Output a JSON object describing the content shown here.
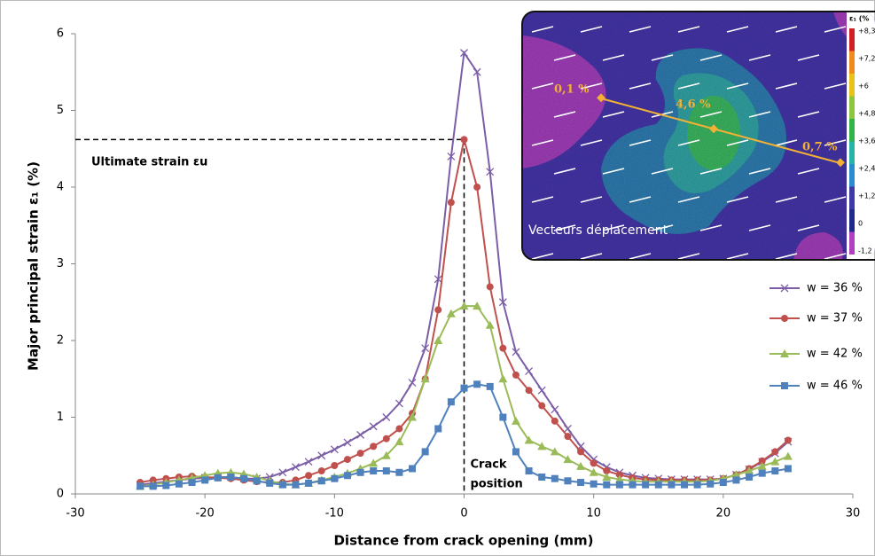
{
  "chart_data": {
    "type": "line",
    "x_label": "Distance from crack opening (mm)",
    "y_label": "Major principal strain ε₁ (%)",
    "xlim": [
      -30,
      30
    ],
    "xticks": [
      -30,
      -20,
      -10,
      0,
      10,
      20,
      30
    ],
    "ylim": [
      0,
      6
    ],
    "yticks": [
      0,
      1,
      2,
      3,
      4,
      5,
      6
    ],
    "grid": false,
    "legend_position": "right",
    "x": [
      -25,
      -24,
      -23,
      -22,
      -21,
      -20,
      -19,
      -18,
      -17,
      -16,
      -15,
      -14,
      -13,
      -12,
      -11,
      -10,
      -9,
      -8,
      -7,
      -6,
      -5,
      -4,
      -3,
      -2,
      -1,
      0,
      1,
      2,
      3,
      4,
      5,
      6,
      7,
      8,
      9,
      10,
      11,
      12,
      13,
      14,
      15,
      16,
      17,
      18,
      19,
      20,
      21,
      22,
      23,
      24,
      25
    ],
    "series": [
      {
        "name": "w = 36 %",
        "color": "#7b5ea7",
        "marker": "x",
        "values": [
          0.12,
          0.14,
          0.16,
          0.18,
          0.2,
          0.21,
          0.22,
          0.22,
          0.2,
          0.2,
          0.22,
          0.28,
          0.35,
          0.42,
          0.5,
          0.58,
          0.67,
          0.77,
          0.88,
          1.0,
          1.18,
          1.45,
          1.9,
          2.8,
          4.4,
          5.75,
          5.5,
          4.2,
          2.5,
          1.85,
          1.6,
          1.35,
          1.1,
          0.85,
          0.62,
          0.45,
          0.35,
          0.28,
          0.24,
          0.21,
          0.2,
          0.19,
          0.19,
          0.19,
          0.19,
          0.2,
          0.25,
          0.32,
          0.42,
          0.53,
          0.68
        ]
      },
      {
        "name": "w = 37 %",
        "color": "#c0504d",
        "marker": "circle",
        "values": [
          0.15,
          0.18,
          0.2,
          0.22,
          0.23,
          0.22,
          0.21,
          0.2,
          0.18,
          0.16,
          0.15,
          0.15,
          0.18,
          0.24,
          0.3,
          0.37,
          0.45,
          0.53,
          0.62,
          0.72,
          0.85,
          1.05,
          1.5,
          2.4,
          3.8,
          4.62,
          4.0,
          2.7,
          1.9,
          1.55,
          1.35,
          1.15,
          0.95,
          0.75,
          0.55,
          0.4,
          0.3,
          0.25,
          0.21,
          0.19,
          0.18,
          0.18,
          0.18,
          0.18,
          0.18,
          0.2,
          0.25,
          0.33,
          0.43,
          0.55,
          0.7
        ]
      },
      {
        "name": "w = 42 %",
        "color": "#9bbb59",
        "marker": "triangle",
        "values": [
          0.1,
          0.12,
          0.15,
          0.18,
          0.21,
          0.24,
          0.27,
          0.28,
          0.26,
          0.22,
          0.17,
          0.13,
          0.12,
          0.14,
          0.18,
          0.22,
          0.27,
          0.33,
          0.4,
          0.5,
          0.68,
          1.0,
          1.5,
          2.0,
          2.35,
          2.45,
          2.45,
          2.2,
          1.5,
          0.95,
          0.7,
          0.62,
          0.55,
          0.45,
          0.36,
          0.28,
          0.22,
          0.19,
          0.17,
          0.16,
          0.16,
          0.16,
          0.16,
          0.16,
          0.17,
          0.2,
          0.25,
          0.3,
          0.36,
          0.42,
          0.49
        ]
      },
      {
        "name": "w = 46 %",
        "color": "#4f81bd",
        "marker": "square",
        "values": [
          0.1,
          0.1,
          0.11,
          0.13,
          0.15,
          0.18,
          0.21,
          0.22,
          0.2,
          0.17,
          0.14,
          0.12,
          0.12,
          0.14,
          0.17,
          0.2,
          0.24,
          0.28,
          0.3,
          0.3,
          0.28,
          0.33,
          0.55,
          0.85,
          1.2,
          1.38,
          1.43,
          1.4,
          1.0,
          0.55,
          0.3,
          0.22,
          0.2,
          0.17,
          0.15,
          0.13,
          0.12,
          0.12,
          0.12,
          0.12,
          0.12,
          0.12,
          0.12,
          0.12,
          0.13,
          0.15,
          0.18,
          0.22,
          0.27,
          0.3,
          0.33
        ]
      }
    ],
    "ultimate_strain": {
      "label": "Ultimate strain εu",
      "x": 0,
      "y": 4.62
    },
    "crack_label": [
      "Crack",
      "position"
    ],
    "inset": {
      "point_labels": [
        "0,1 %",
        "4,6 %",
        "0,7 %"
      ],
      "caption": "Vecteurs déplacement",
      "colorbar_title": "ε₁ (%",
      "colorbar_ticks": [
        "+8,3",
        "+7,2",
        "+6",
        "+4,8",
        "+3,6",
        "+2,4",
        "+1,2",
        "0",
        "-1,2"
      ]
    }
  }
}
